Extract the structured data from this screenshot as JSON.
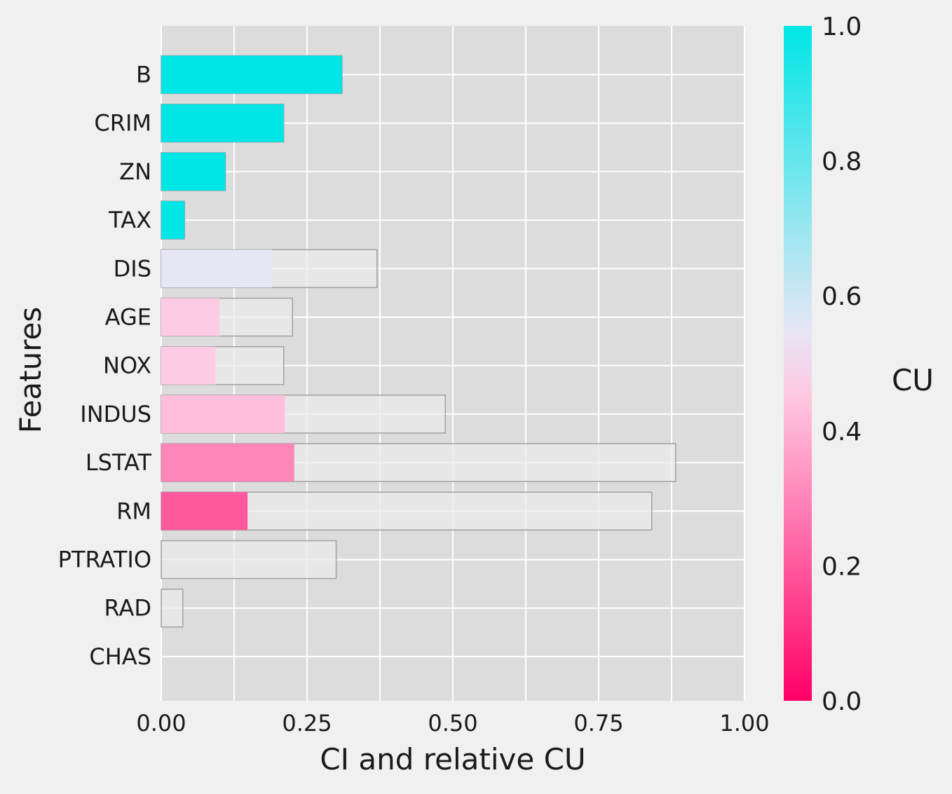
{
  "chart_data": {
    "type": "bar",
    "orientation": "horizontal",
    "xlabel": "CI and relative CU",
    "ylabel": "Features",
    "xlim": [
      0,
      1
    ],
    "xticks": [
      "0.00",
      "0.25",
      "0.50",
      "0.75",
      "1.00"
    ],
    "xtick_values": [
      0,
      0.25,
      0.5,
      0.75,
      1.0
    ],
    "grid": true,
    "categories": [
      "B",
      "CRIM",
      "ZN",
      "TAX",
      "DIS",
      "AGE",
      "NOX",
      "INDUS",
      "LSTAT",
      "RM",
      "PTRATIO",
      "RAD",
      "CHAS"
    ],
    "series": [
      {
        "name": "CI",
        "values": [
          0.31,
          0.21,
          0.11,
          0.04,
          0.37,
          0.225,
          0.21,
          0.487,
          0.882,
          0.841,
          0.3,
          0.037,
          0.0
        ]
      },
      {
        "name": "relative CU",
        "values": [
          0.31,
          0.21,
          0.11,
          0.04,
          0.19,
          0.1,
          0.093,
          0.212,
          0.228,
          0.148,
          0.0,
          0.0,
          0.0
        ]
      }
    ],
    "cu": [
      1.0,
      1.0,
      1.0,
      1.0,
      0.55,
      0.46,
      0.46,
      0.43,
      0.3,
      0.2,
      0.0,
      0.0,
      0.0
    ],
    "colorbar": {
      "label": "CU",
      "range": [
        0,
        1
      ],
      "ticks": [
        "0.0",
        "0.2",
        "0.4",
        "0.6",
        "0.8",
        "1.0"
      ],
      "tick_values": [
        0,
        0.2,
        0.4,
        0.6,
        0.8,
        1.0
      ],
      "colors": [
        "#ff0066",
        "#ffc8e1",
        "#e6e6f5",
        "#00e6e6"
      ]
    },
    "colors": {
      "background": "#f0f0f0",
      "plot_background": "#dcdcdc",
      "grid": "#ffffff",
      "ci_bar": "#ebebeb",
      "ci_bar_edge": "#a0a0a0"
    }
  }
}
